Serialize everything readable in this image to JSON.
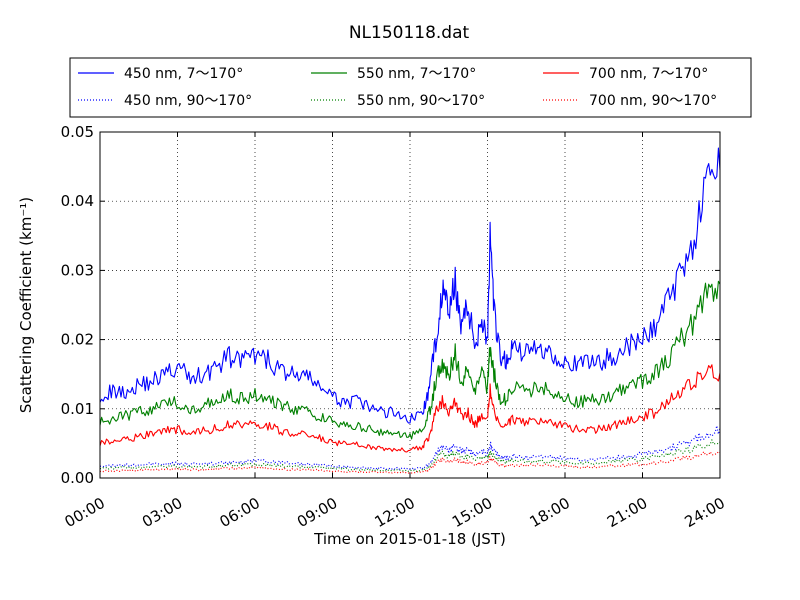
{
  "chart_data": {
    "type": "line",
    "title": "NL150118.dat",
    "xlabel": "Time on 2015-01-18 (JST)",
    "ylabel": "Scattering Coefficient (km⁻¹)",
    "xlim": [
      0,
      24
    ],
    "ylim": [
      0,
      0.05
    ],
    "xticks": [
      0,
      3,
      6,
      9,
      12,
      15,
      18,
      21,
      24
    ],
    "xtick_labels": [
      "00:00",
      "03:00",
      "06:00",
      "09:00",
      "12:00",
      "15:00",
      "18:00",
      "21:00",
      "24:00"
    ],
    "yticks": [
      0,
      0.01,
      0.02,
      0.03,
      0.04,
      0.05
    ],
    "ytick_labels": [
      "0.00",
      "0.01",
      "0.02",
      "0.03",
      "0.04",
      "0.05"
    ],
    "grid": true,
    "legend_position": "above-plot",
    "x": [
      0,
      0.5,
      1,
      1.5,
      2,
      2.5,
      3,
      3.5,
      4,
      4.5,
      5,
      5.5,
      6,
      6.5,
      7,
      7.5,
      8,
      8.5,
      9,
      9.5,
      10,
      10.5,
      11,
      11.5,
      12,
      12.5,
      12.75,
      13,
      13.25,
      13.5,
      13.75,
      14,
      14.25,
      14.5,
      14.75,
      15,
      15.1,
      15.25,
      15.5,
      15.75,
      16,
      16.5,
      17,
      17.5,
      18,
      18.5,
      19,
      19.5,
      20,
      20.5,
      21,
      21.5,
      22,
      22.5,
      23,
      23.5,
      24
    ],
    "series": [
      {
        "name": "450 nm, 7～170°",
        "color": "#0000ff",
        "style": "solid",
        "values": [
          0.012,
          0.0125,
          0.0125,
          0.0135,
          0.014,
          0.015,
          0.016,
          0.0145,
          0.015,
          0.016,
          0.0175,
          0.017,
          0.0175,
          0.017,
          0.0155,
          0.015,
          0.0145,
          0.0135,
          0.0115,
          0.011,
          0.011,
          0.01,
          0.0095,
          0.0095,
          0.0085,
          0.0095,
          0.013,
          0.02,
          0.027,
          0.024,
          0.028,
          0.022,
          0.025,
          0.019,
          0.023,
          0.02,
          0.034,
          0.024,
          0.017,
          0.017,
          0.019,
          0.018,
          0.019,
          0.018,
          0.017,
          0.016,
          0.017,
          0.017,
          0.018,
          0.019,
          0.02,
          0.022,
          0.026,
          0.03,
          0.035,
          0.042,
          0.0445
        ]
      },
      {
        "name": "550 nm, 7～170°",
        "color": "#008000",
        "style": "solid",
        "values": [
          0.008,
          0.0085,
          0.009,
          0.0095,
          0.01,
          0.0105,
          0.011,
          0.01,
          0.0105,
          0.0115,
          0.012,
          0.0115,
          0.012,
          0.0115,
          0.0105,
          0.01,
          0.0095,
          0.009,
          0.008,
          0.0075,
          0.0075,
          0.007,
          0.0065,
          0.0065,
          0.006,
          0.007,
          0.0095,
          0.014,
          0.017,
          0.015,
          0.018,
          0.014,
          0.016,
          0.012,
          0.015,
          0.013,
          0.019,
          0.015,
          0.011,
          0.0115,
          0.013,
          0.0125,
          0.013,
          0.0125,
          0.012,
          0.011,
          0.0115,
          0.0115,
          0.0125,
          0.013,
          0.014,
          0.015,
          0.017,
          0.02,
          0.023,
          0.027,
          0.028
        ]
      },
      {
        "name": "700 nm, 7～170°",
        "color": "#ff0000",
        "style": "solid",
        "values": [
          0.005,
          0.0055,
          0.0055,
          0.006,
          0.0065,
          0.0068,
          0.007,
          0.0065,
          0.0068,
          0.0072,
          0.0078,
          0.0075,
          0.0077,
          0.0075,
          0.0068,
          0.0065,
          0.0062,
          0.0058,
          0.0052,
          0.005,
          0.005,
          0.0045,
          0.0042,
          0.0042,
          0.004,
          0.0045,
          0.006,
          0.0095,
          0.011,
          0.0095,
          0.011,
          0.009,
          0.0095,
          0.0075,
          0.009,
          0.0085,
          0.013,
          0.0095,
          0.007,
          0.0075,
          0.0085,
          0.008,
          0.0085,
          0.008,
          0.0075,
          0.007,
          0.007,
          0.0072,
          0.0078,
          0.0082,
          0.0088,
          0.0095,
          0.011,
          0.0125,
          0.014,
          0.0155,
          0.0152
        ]
      },
      {
        "name": "450 nm, 90～170°",
        "color": "#0000ff",
        "style": "dotted",
        "values": [
          0.0018,
          0.0018,
          0.0019,
          0.0019,
          0.002,
          0.002,
          0.0021,
          0.002,
          0.002,
          0.0021,
          0.0023,
          0.0023,
          0.0025,
          0.0024,
          0.0022,
          0.0021,
          0.002,
          0.0019,
          0.0017,
          0.0016,
          0.0015,
          0.0015,
          0.0014,
          0.0014,
          0.0013,
          0.0015,
          0.002,
          0.0035,
          0.0045,
          0.004,
          0.0045,
          0.0038,
          0.004,
          0.0033,
          0.0038,
          0.0035,
          0.005,
          0.004,
          0.003,
          0.003,
          0.0032,
          0.003,
          0.0031,
          0.003,
          0.0028,
          0.0027,
          0.0027,
          0.0028,
          0.003,
          0.0032,
          0.0034,
          0.0037,
          0.0042,
          0.0048,
          0.0055,
          0.0065,
          0.0072
        ]
      },
      {
        "name": "550 nm, 90～170°",
        "color": "#008000",
        "style": "dotted",
        "values": [
          0.0014,
          0.0014,
          0.0015,
          0.0015,
          0.0016,
          0.0016,
          0.0017,
          0.0016,
          0.0016,
          0.0017,
          0.0019,
          0.0019,
          0.002,
          0.0019,
          0.0018,
          0.0017,
          0.0016,
          0.0015,
          0.0014,
          0.0013,
          0.0012,
          0.0012,
          0.0011,
          0.0011,
          0.001,
          0.0012,
          0.0016,
          0.0028,
          0.0036,
          0.0032,
          0.0036,
          0.003,
          0.0032,
          0.0026,
          0.003,
          0.0028,
          0.004,
          0.0032,
          0.0024,
          0.0024,
          0.0026,
          0.0024,
          0.0025,
          0.0024,
          0.0022,
          0.0021,
          0.0021,
          0.0022,
          0.0024,
          0.0026,
          0.0027,
          0.003,
          0.0033,
          0.0038,
          0.0042,
          0.0048,
          0.0052
        ]
      },
      {
        "name": "700 nm, 90～170°",
        "color": "#ff0000",
        "style": "dotted",
        "values": [
          0.001,
          0.001,
          0.0011,
          0.0011,
          0.0012,
          0.0012,
          0.0013,
          0.0012,
          0.0012,
          0.0013,
          0.0014,
          0.0014,
          0.0015,
          0.0014,
          0.0013,
          0.0012,
          0.0012,
          0.0011,
          0.001,
          0.0009,
          0.0009,
          0.0009,
          0.0008,
          0.0008,
          0.0008,
          0.0009,
          0.0012,
          0.0021,
          0.0027,
          0.0024,
          0.0027,
          0.0022,
          0.0024,
          0.0019,
          0.0022,
          0.0021,
          0.003,
          0.0024,
          0.0018,
          0.0018,
          0.0019,
          0.0018,
          0.0019,
          0.0018,
          0.0017,
          0.0016,
          0.0016,
          0.0017,
          0.0018,
          0.0019,
          0.002,
          0.0022,
          0.0025,
          0.0028,
          0.0031,
          0.0035,
          0.0037
        ]
      }
    ]
  }
}
